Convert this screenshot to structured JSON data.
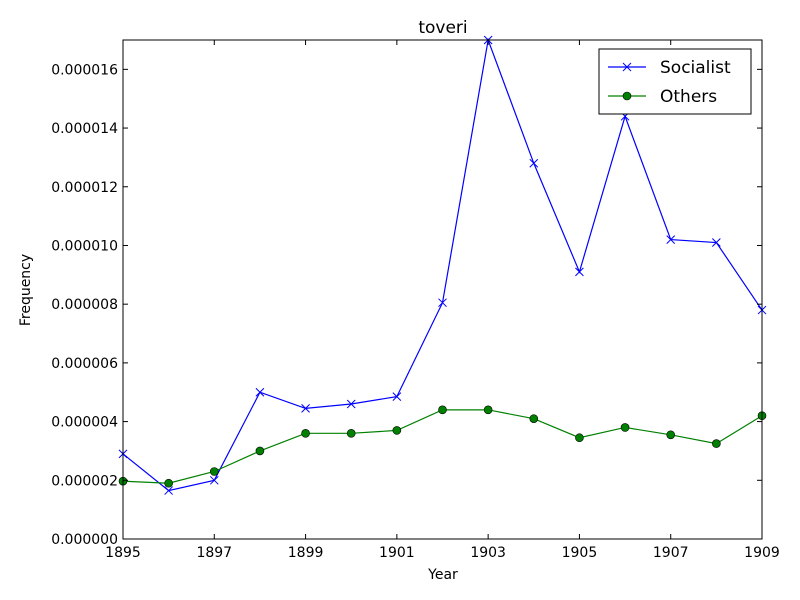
{
  "chart_data": {
    "type": "line",
    "title": "toveri",
    "xlabel": "Year",
    "ylabel": "Frequency",
    "xlim": [
      1895,
      1909
    ],
    "ylim": [
      0,
      1.7e-05
    ],
    "x_ticks": [
      "1895",
      "1897",
      "1899",
      "1901",
      "1903",
      "1905",
      "1907",
      "1909"
    ],
    "y_ticks": [
      "0.000000",
      "0.000002",
      "0.000004",
      "0.000006",
      "0.000008",
      "0.000010",
      "0.000012",
      "0.000014",
      "0.000016"
    ],
    "x": [
      1895,
      1896,
      1897,
      1898,
      1899,
      1900,
      1901,
      1902,
      1903,
      1904,
      1905,
      1906,
      1907,
      1908,
      1909
    ],
    "series": [
      {
        "name": "Socialist",
        "color": "#0000ff",
        "marker": "x",
        "values": [
          2.9e-06,
          1.65e-06,
          2e-06,
          5e-06,
          4.45e-06,
          4.6e-06,
          4.85e-06,
          8.05e-06,
          1.7e-05,
          1.28e-05,
          9.1e-06,
          1.44e-05,
          1.02e-05,
          1.01e-05,
          7.8e-06
        ]
      },
      {
        "name": "Others",
        "color": "#008000",
        "marker": "o",
        "values": [
          1.97e-06,
          1.9e-06,
          2.3e-06,
          3e-06,
          3.6e-06,
          3.6e-06,
          3.7e-06,
          4.4e-06,
          4.4e-06,
          4.1e-06,
          3.45e-06,
          3.8e-06,
          3.55e-06,
          3.25e-06,
          4.2e-06
        ]
      }
    ],
    "legend_position": "top-right",
    "grid": false
  }
}
